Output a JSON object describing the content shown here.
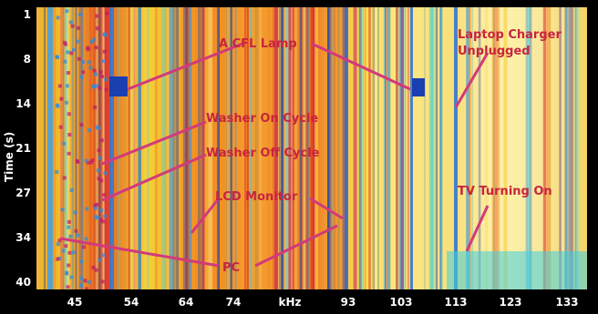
{
  "chart_data": {
    "type": "heatmap",
    "title": "",
    "xlabel": "kHz",
    "ylabel": "Time (s)",
    "x_ticks": [
      "45",
      "54",
      "64",
      "74",
      "93",
      "103",
      "113",
      "123",
      "133"
    ],
    "y_ticks": [
      "1",
      "8",
      "14",
      "21",
      "27",
      "34",
      "40"
    ],
    "grid": false,
    "colormap": [
      "#1a3fb0",
      "#2a8ce0",
      "#3fd0e0",
      "#f7f0a0",
      "#f8d040",
      "#f08a20",
      "#e03020",
      "#c0186a"
    ],
    "annotations": [
      {
        "label": "A CFL Lamp",
        "color": "#c8243e"
      },
      {
        "label": "Laptop Charger Unplugged",
        "color": "#c8243e"
      },
      {
        "label": "Washer On Cycle",
        "color": "#c8243e"
      },
      {
        "label": "Washer Off Cycle",
        "color": "#c8243e"
      },
      {
        "label": "LCD Monitor",
        "color": "#c8243e"
      },
      {
        "label": "TV Turning On",
        "color": "#c8243e"
      },
      {
        "label": "PC",
        "color": "#c8243e"
      }
    ]
  }
}
